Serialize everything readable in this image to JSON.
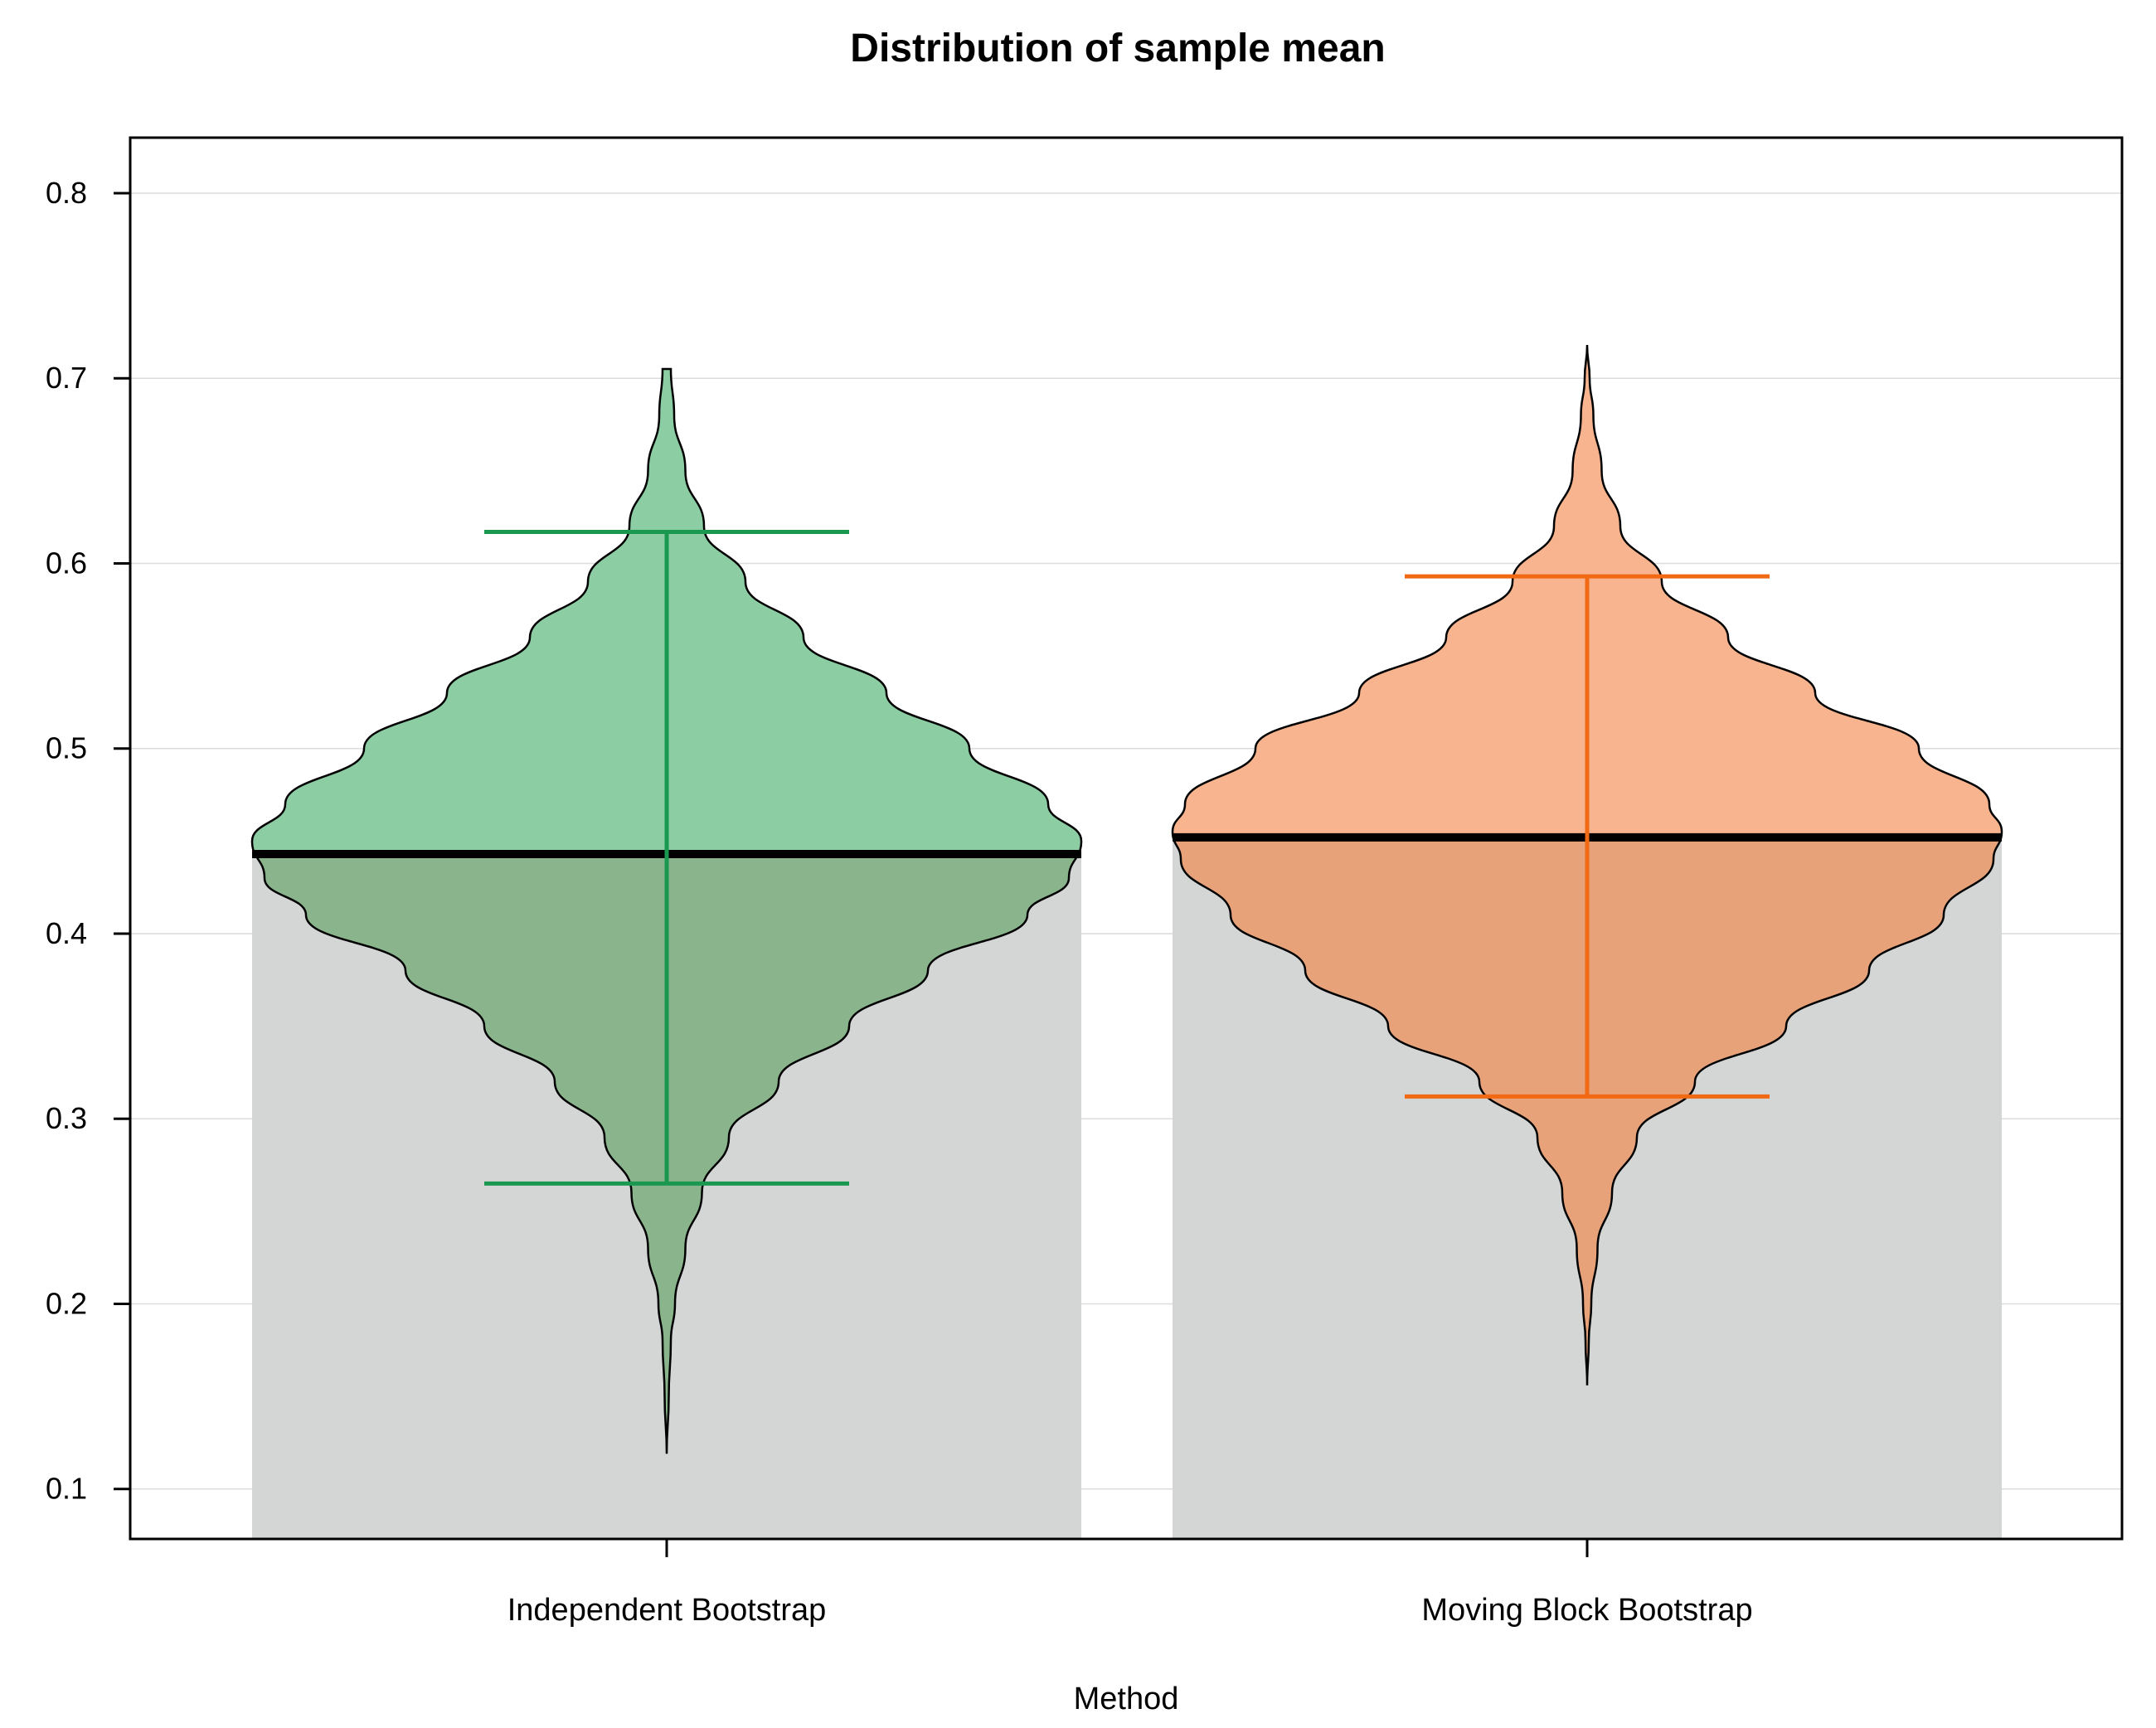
{
  "chart_data": {
    "type": "violin",
    "title": "Distribution of sample mean",
    "xlabel": "Method",
    "ylabel": "",
    "ylim": [
      0.073,
      0.83
    ],
    "yticks": [
      "0.1",
      "0.2",
      "0.3",
      "0.4",
      "0.5",
      "0.6",
      "0.7",
      "0.8"
    ],
    "grid": "horizontal",
    "categories": [
      "Independent Bootstrap",
      "Moving Block Bootstrap"
    ],
    "series": [
      {
        "category": "Independent Bootstrap",
        "fill_color": "#8ccda3",
        "lower_fill_color": "#8ab58c",
        "interval_color": "#1a9850",
        "mean": 0.443,
        "ci_lower": 0.265,
        "ci_upper": 0.617,
        "min": 0.119,
        "max": 0.705,
        "density": [
          [
            0.119,
            0.0
          ],
          [
            0.15,
            0.005
          ],
          [
            0.18,
            0.01
          ],
          [
            0.2,
            0.02
          ],
          [
            0.23,
            0.045
          ],
          [
            0.26,
            0.085
          ],
          [
            0.29,
            0.15
          ],
          [
            0.32,
            0.27
          ],
          [
            0.35,
            0.44
          ],
          [
            0.38,
            0.63
          ],
          [
            0.41,
            0.87
          ],
          [
            0.43,
            0.97
          ],
          [
            0.45,
            1.0
          ],
          [
            0.47,
            0.92
          ],
          [
            0.5,
            0.73
          ],
          [
            0.53,
            0.53
          ],
          [
            0.56,
            0.33
          ],
          [
            0.59,
            0.19
          ],
          [
            0.62,
            0.09
          ],
          [
            0.65,
            0.045
          ],
          [
            0.68,
            0.018
          ],
          [
            0.705,
            0.01
          ]
        ]
      },
      {
        "category": "Moving Block Bootstrap",
        "fill_color": "#f8b48e",
        "lower_fill_color": "#e7a27a",
        "interval_color": "#f16913",
        "mean": 0.452,
        "ci_lower": 0.312,
        "ci_upper": 0.593,
        "min": 0.156,
        "max": 0.718,
        "density": [
          [
            0.156,
            0.0
          ],
          [
            0.18,
            0.004
          ],
          [
            0.2,
            0.01
          ],
          [
            0.23,
            0.025
          ],
          [
            0.26,
            0.06
          ],
          [
            0.29,
            0.12
          ],
          [
            0.32,
            0.26
          ],
          [
            0.35,
            0.48
          ],
          [
            0.38,
            0.68
          ],
          [
            0.41,
            0.86
          ],
          [
            0.44,
            0.98
          ],
          [
            0.455,
            1.0
          ],
          [
            0.47,
            0.97
          ],
          [
            0.5,
            0.8
          ],
          [
            0.53,
            0.55
          ],
          [
            0.56,
            0.34
          ],
          [
            0.59,
            0.18
          ],
          [
            0.62,
            0.08
          ],
          [
            0.65,
            0.035
          ],
          [
            0.68,
            0.015
          ],
          [
            0.7,
            0.006
          ],
          [
            0.718,
            0.0
          ]
        ]
      }
    ]
  }
}
